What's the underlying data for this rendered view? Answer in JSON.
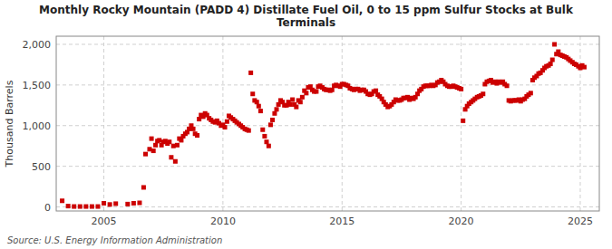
{
  "chart_data": {
    "type": "scatter",
    "title": "Monthly Rocky Mountain (PADD 4) Distillate Fuel Oil, 0 to 15 ppm Sulfur Stocks at Bulk\nTerminals",
    "ylabel": "Thousand Barrels",
    "annotation": "Source: U.S. Energy Information Administration",
    "color": "#cc0000",
    "marker": "square",
    "grid": true,
    "xlim": [
      2003.0,
      2025.8
    ],
    "ylim": [
      -50,
      2100
    ],
    "xticks": [
      2005,
      2010,
      2015,
      2020,
      2025
    ],
    "yticks": [
      0,
      500,
      {
        "value": 1000,
        "label": "1,000"
      },
      {
        "value": 1500,
        "label": "1,500"
      },
      {
        "value": 2000,
        "label": "2,000"
      }
    ],
    "x": [
      2003.25,
      2003.5,
      2003.75,
      2004.0,
      2004.25,
      2004.5,
      2004.75,
      2005.0,
      2005.25,
      2005.5,
      2006.0,
      2006.25,
      2006.5,
      2006.67,
      2006.75,
      2006.92,
      2007.0,
      2007.08,
      2007.17,
      2007.25,
      2007.33,
      2007.42,
      2007.5,
      2007.58,
      2007.67,
      2007.75,
      2007.83,
      2007.92,
      2008.0,
      2008.08,
      2008.17,
      2008.25,
      2008.33,
      2008.42,
      2008.5,
      2008.58,
      2008.67,
      2008.75,
      2008.83,
      2008.92,
      2009.0,
      2009.08,
      2009.17,
      2009.25,
      2009.33,
      2009.42,
      2009.5,
      2009.58,
      2009.67,
      2009.75,
      2009.83,
      2009.92,
      2010.0,
      2010.08,
      2010.17,
      2010.25,
      2010.33,
      2010.42,
      2010.5,
      2010.58,
      2010.67,
      2010.75,
      2010.83,
      2010.92,
      2011.0,
      2011.08,
      2011.17,
      2011.25,
      2011.33,
      2011.42,
      2011.5,
      2011.58,
      2011.67,
      2011.75,
      2011.83,
      2011.92,
      2012.0,
      2012.08,
      2012.17,
      2012.25,
      2012.33,
      2012.42,
      2012.5,
      2012.58,
      2012.67,
      2012.75,
      2012.83,
      2012.92,
      2013.0,
      2013.08,
      2013.17,
      2013.25,
      2013.33,
      2013.42,
      2013.5,
      2013.58,
      2013.67,
      2013.75,
      2013.83,
      2013.92,
      2014.0,
      2014.08,
      2014.17,
      2014.25,
      2014.33,
      2014.42,
      2014.5,
      2014.58,
      2014.67,
      2014.75,
      2014.83,
      2014.92,
      2015.0,
      2015.08,
      2015.17,
      2015.25,
      2015.33,
      2015.42,
      2015.5,
      2015.58,
      2015.67,
      2015.75,
      2015.83,
      2015.92,
      2016.0,
      2016.08,
      2016.17,
      2016.25,
      2016.33,
      2016.42,
      2016.5,
      2016.58,
      2016.67,
      2016.75,
      2016.83,
      2016.92,
      2017.0,
      2017.08,
      2017.17,
      2017.25,
      2017.33,
      2017.42,
      2017.5,
      2017.58,
      2017.67,
      2017.75,
      2017.83,
      2017.92,
      2018.0,
      2018.08,
      2018.17,
      2018.25,
      2018.33,
      2018.42,
      2018.5,
      2018.58,
      2018.67,
      2018.75,
      2018.83,
      2018.92,
      2019.0,
      2019.08,
      2019.17,
      2019.25,
      2019.33,
      2019.42,
      2019.5,
      2019.58,
      2019.67,
      2019.75,
      2019.83,
      2019.92,
      2020.0,
      2020.08,
      2020.17,
      2020.25,
      2020.33,
      2020.42,
      2020.5,
      2020.58,
      2020.67,
      2020.75,
      2020.83,
      2020.92,
      2021.0,
      2021.08,
      2021.17,
      2021.25,
      2021.33,
      2021.42,
      2021.5,
      2021.58,
      2021.67,
      2021.75,
      2021.83,
      2021.92,
      2022.0,
      2022.08,
      2022.17,
      2022.25,
      2022.33,
      2022.42,
      2022.5,
      2022.58,
      2022.67,
      2022.75,
      2022.83,
      2022.92,
      2023.0,
      2023.08,
      2023.17,
      2023.25,
      2023.33,
      2023.42,
      2023.5,
      2023.58,
      2023.67,
      2023.75,
      2023.83,
      2023.92,
      2024.0,
      2024.08,
      2024.17,
      2024.25,
      2024.33,
      2024.42,
      2024.5,
      2024.58,
      2024.67,
      2024.75,
      2024.83,
      2024.92,
      2025.0,
      2025.08,
      2025.17
    ],
    "values": [
      75,
      10,
      5,
      5,
      5,
      5,
      5,
      45,
      30,
      40,
      35,
      45,
      50,
      240,
      650,
      710,
      840,
      690,
      760,
      810,
      820,
      760,
      800,
      810,
      780,
      800,
      610,
      750,
      560,
      760,
      840,
      820,
      870,
      900,
      920,
      960,
      1000,
      960,
      900,
      880,
      1080,
      1130,
      1110,
      1150,
      1130,
      1090,
      1070,
      1050,
      1040,
      1060,
      1030,
      1000,
      1010,
      980,
      1050,
      1120,
      1100,
      1080,
      1060,
      1040,
      1020,
      1000,
      980,
      960,
      950,
      940,
      1650,
      1390,
      1310,
      1290,
      1240,
      1180,
      950,
      870,
      800,
      750,
      1010,
      1070,
      1150,
      1200,
      1260,
      1310,
      1290,
      1250,
      1250,
      1290,
      1260,
      1320,
      1260,
      1230,
      1310,
      1290,
      1350,
      1430,
      1400,
      1470,
      1480,
      1440,
      1420,
      1420,
      1480,
      1490,
      1470,
      1450,
      1440,
      1440,
      1430,
      1440,
      1490,
      1500,
      1490,
      1480,
      1510,
      1510,
      1500,
      1490,
      1460,
      1450,
      1440,
      1450,
      1450,
      1430,
      1440,
      1440,
      1420,
      1390,
      1380,
      1390,
      1420,
      1430,
      1380,
      1360,
      1330,
      1290,
      1260,
      1230,
      1240,
      1260,
      1290,
      1320,
      1310,
      1310,
      1320,
      1340,
      1340,
      1350,
      1320,
      1340,
      1330,
      1350,
      1390,
      1430,
      1450,
      1480,
      1490,
      1490,
      1490,
      1500,
      1490,
      1500,
      1530,
      1540,
      1560,
      1540,
      1510,
      1490,
      1480,
      1480,
      1490,
      1480,
      1470,
      1460,
      1450,
      1060,
      1200,
      1240,
      1270,
      1290,
      1310,
      1330,
      1350,
      1360,
      1370,
      1390,
      1510,
      1540,
      1550,
      1560,
      1530,
      1540,
      1520,
      1540,
      1530,
      1540,
      1510,
      1490,
      1310,
      1300,
      1310,
      1310,
      1310,
      1320,
      1300,
      1320,
      1330,
      1360,
      1380,
      1400,
      1560,
      1590,
      1610,
      1640,
      1650,
      1680,
      1710,
      1730,
      1740,
      1760,
      1810,
      2000,
      1880,
      1910,
      1870,
      1860,
      1850,
      1840,
      1820,
      1800,
      1780,
      1760,
      1750,
      1730,
      1710,
      1740,
      1720
    ]
  }
}
